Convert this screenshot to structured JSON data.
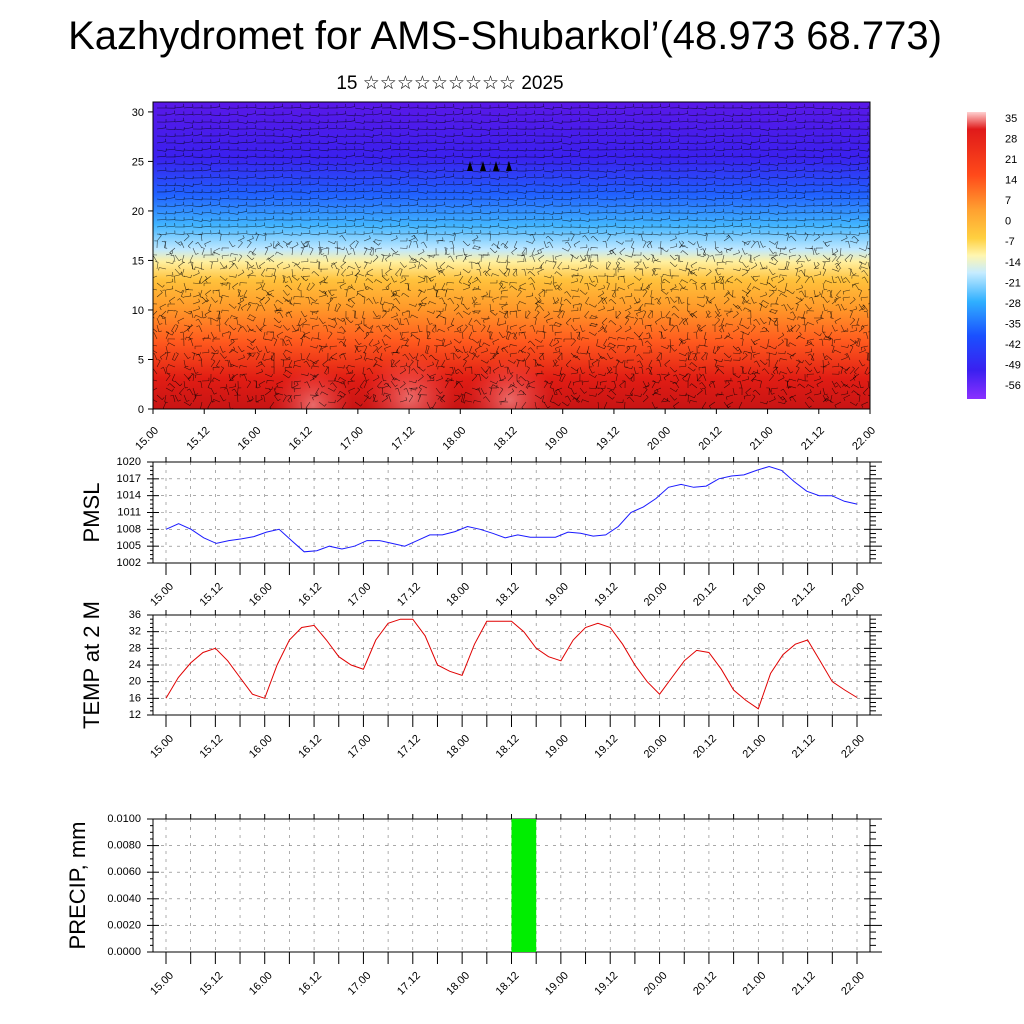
{
  "title": "Kazhydromet for AMS-Shubarkol’(48.973 68.773)",
  "subtitle": "15 ☆☆☆☆☆☆☆☆☆ 2025",
  "colors": {
    "pmsl_line": "#1a1aff",
    "temp_line": "#e00000",
    "precip_bar": "#00ee00"
  },
  "chart_data": [
    {
      "type": "heatmap",
      "title": "",
      "x_tick_labels": [
        "15.00",
        "15.12",
        "16.00",
        "16.12",
        "17.00",
        "17.12",
        "18.00",
        "18.12",
        "19.00",
        "19.12",
        "20.00",
        "20.12",
        "21.00",
        "21.12",
        "22.00"
      ],
      "y_ticks": [
        0,
        5,
        10,
        15,
        20,
        25,
        30
      ],
      "ylim": [
        0,
        31
      ],
      "colorbar_labels": [
        "35",
        "28",
        "21",
        "14",
        "7",
        "0",
        "-7",
        "-14",
        "-21",
        "-28",
        "-35",
        "-42",
        "-49",
        "-56"
      ],
      "colormap": "blue-white-yellow-red (cold at top, warm at bottom) with wind barbs overlay",
      "approx_temperature_by_level": [
        {
          "level": 0,
          "value": 30
        },
        {
          "level": 5,
          "value": 22
        },
        {
          "level": 10,
          "value": 10
        },
        {
          "level": 15,
          "value": -8
        },
        {
          "level": 20,
          "value": -30
        },
        {
          "level": 25,
          "value": -50
        },
        {
          "level": 30,
          "value": -58
        }
      ]
    },
    {
      "type": "line",
      "ylabel": "PMSL",
      "ylim": [
        1002,
        1020
      ],
      "y_ticks": [
        1002,
        1005,
        1008,
        1011,
        1014,
        1017,
        1020
      ],
      "x_tick_labels": [
        "15.00",
        "15.12",
        "16.00",
        "16.12",
        "17.00",
        "17.12",
        "18.00",
        "18.12",
        "19.00",
        "19.12",
        "20.00",
        "20.12",
        "21.00",
        "21.12",
        "22.00"
      ],
      "series": [
        {
          "values": [
            1008,
            1009,
            1008,
            1006.5,
            1005.5,
            1006,
            1006.3,
            1006.7,
            1007.5,
            1008,
            1006,
            1004,
            1004.2,
            1005,
            1004.5,
            1005,
            1006,
            1006,
            1005.5,
            1005,
            1006,
            1007,
            1007,
            1007.6,
            1008.5,
            1008,
            1007.3,
            1006.5,
            1007,
            1006.6,
            1006.6,
            1006.6,
            1007.5,
            1007.3,
            1006.8,
            1007,
            1008.5,
            1011,
            1012,
            1013.5,
            1015.5,
            1016,
            1015.5,
            1015.7,
            1017,
            1017.5,
            1017.7,
            1018.5,
            1019.2,
            1018.5,
            1016.5,
            1014.8,
            1014,
            1014,
            1013,
            1012.5
          ]
        }
      ]
    },
    {
      "type": "line",
      "ylabel": "TEMP at 2 M",
      "ylim": [
        12,
        36
      ],
      "y_ticks": [
        12,
        16,
        20,
        24,
        28,
        32,
        36
      ],
      "x_tick_labels": [
        "15.00",
        "15.12",
        "16.00",
        "16.12",
        "17.00",
        "17.12",
        "18.00",
        "18.12",
        "19.00",
        "19.12",
        "20.00",
        "20.12",
        "21.00",
        "21.12",
        "22.00"
      ],
      "series": [
        {
          "values": [
            16,
            21,
            24.5,
            27,
            28,
            25,
            21,
            17,
            16,
            24,
            30,
            33,
            33.5,
            30,
            26,
            24,
            23,
            30,
            34,
            35,
            35,
            31,
            24,
            22.5,
            21.5,
            29,
            34.5,
            34.5,
            34.5,
            32,
            28,
            26,
            25,
            30,
            33,
            34,
            33,
            29,
            24,
            20,
            17,
            21,
            25,
            27.5,
            27,
            23,
            18,
            15.5,
            13.5,
            22,
            26.5,
            29,
            30,
            25,
            20,
            18,
            16.2
          ]
        }
      ]
    },
    {
      "type": "bar",
      "ylabel": "PRECIP, mm",
      "ylim": [
        0,
        0.01
      ],
      "y_tick_labels": [
        "0.0000",
        "0.0020",
        "0.0040",
        "0.0060",
        "0.0080",
        "0.0100"
      ],
      "x_tick_labels": [
        "15.00",
        "15.12",
        "16.00",
        "16.12",
        "17.00",
        "17.12",
        "18.00",
        "18.12",
        "19.00",
        "19.12",
        "20.00",
        "20.12",
        "21.00",
        "21.12",
        "22.00"
      ],
      "bars": [
        {
          "from_tick": 7,
          "to_tick": 7.5,
          "value": 0.01
        }
      ]
    }
  ]
}
